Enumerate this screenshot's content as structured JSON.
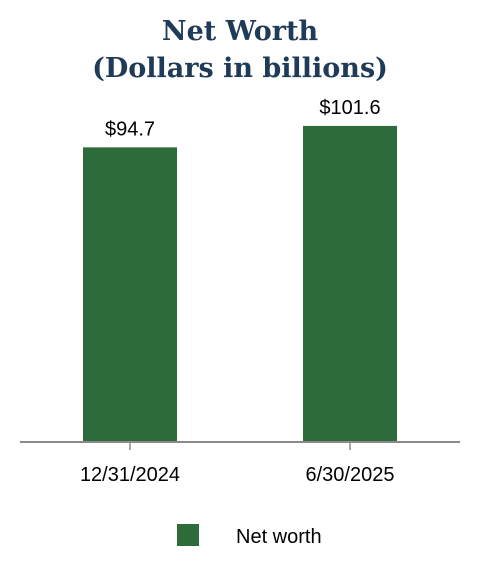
{
  "chart_data": {
    "type": "bar",
    "title": "Net Worth",
    "subtitle": "(Dollars in billions)",
    "categories": [
      "12/31/2024",
      "6/30/2025"
    ],
    "series": [
      {
        "name": "Net worth",
        "values": [
          94.7,
          101.6
        ],
        "value_labels": [
          "$94.7",
          "$101.6"
        ]
      }
    ],
    "ylim": [
      0,
      112.5
    ],
    "grid": false,
    "legend": "bottom-center"
  },
  "colors": {
    "bar": "#2e6b3a",
    "title": "#1f3b57",
    "axis": "#8a8a8a"
  }
}
